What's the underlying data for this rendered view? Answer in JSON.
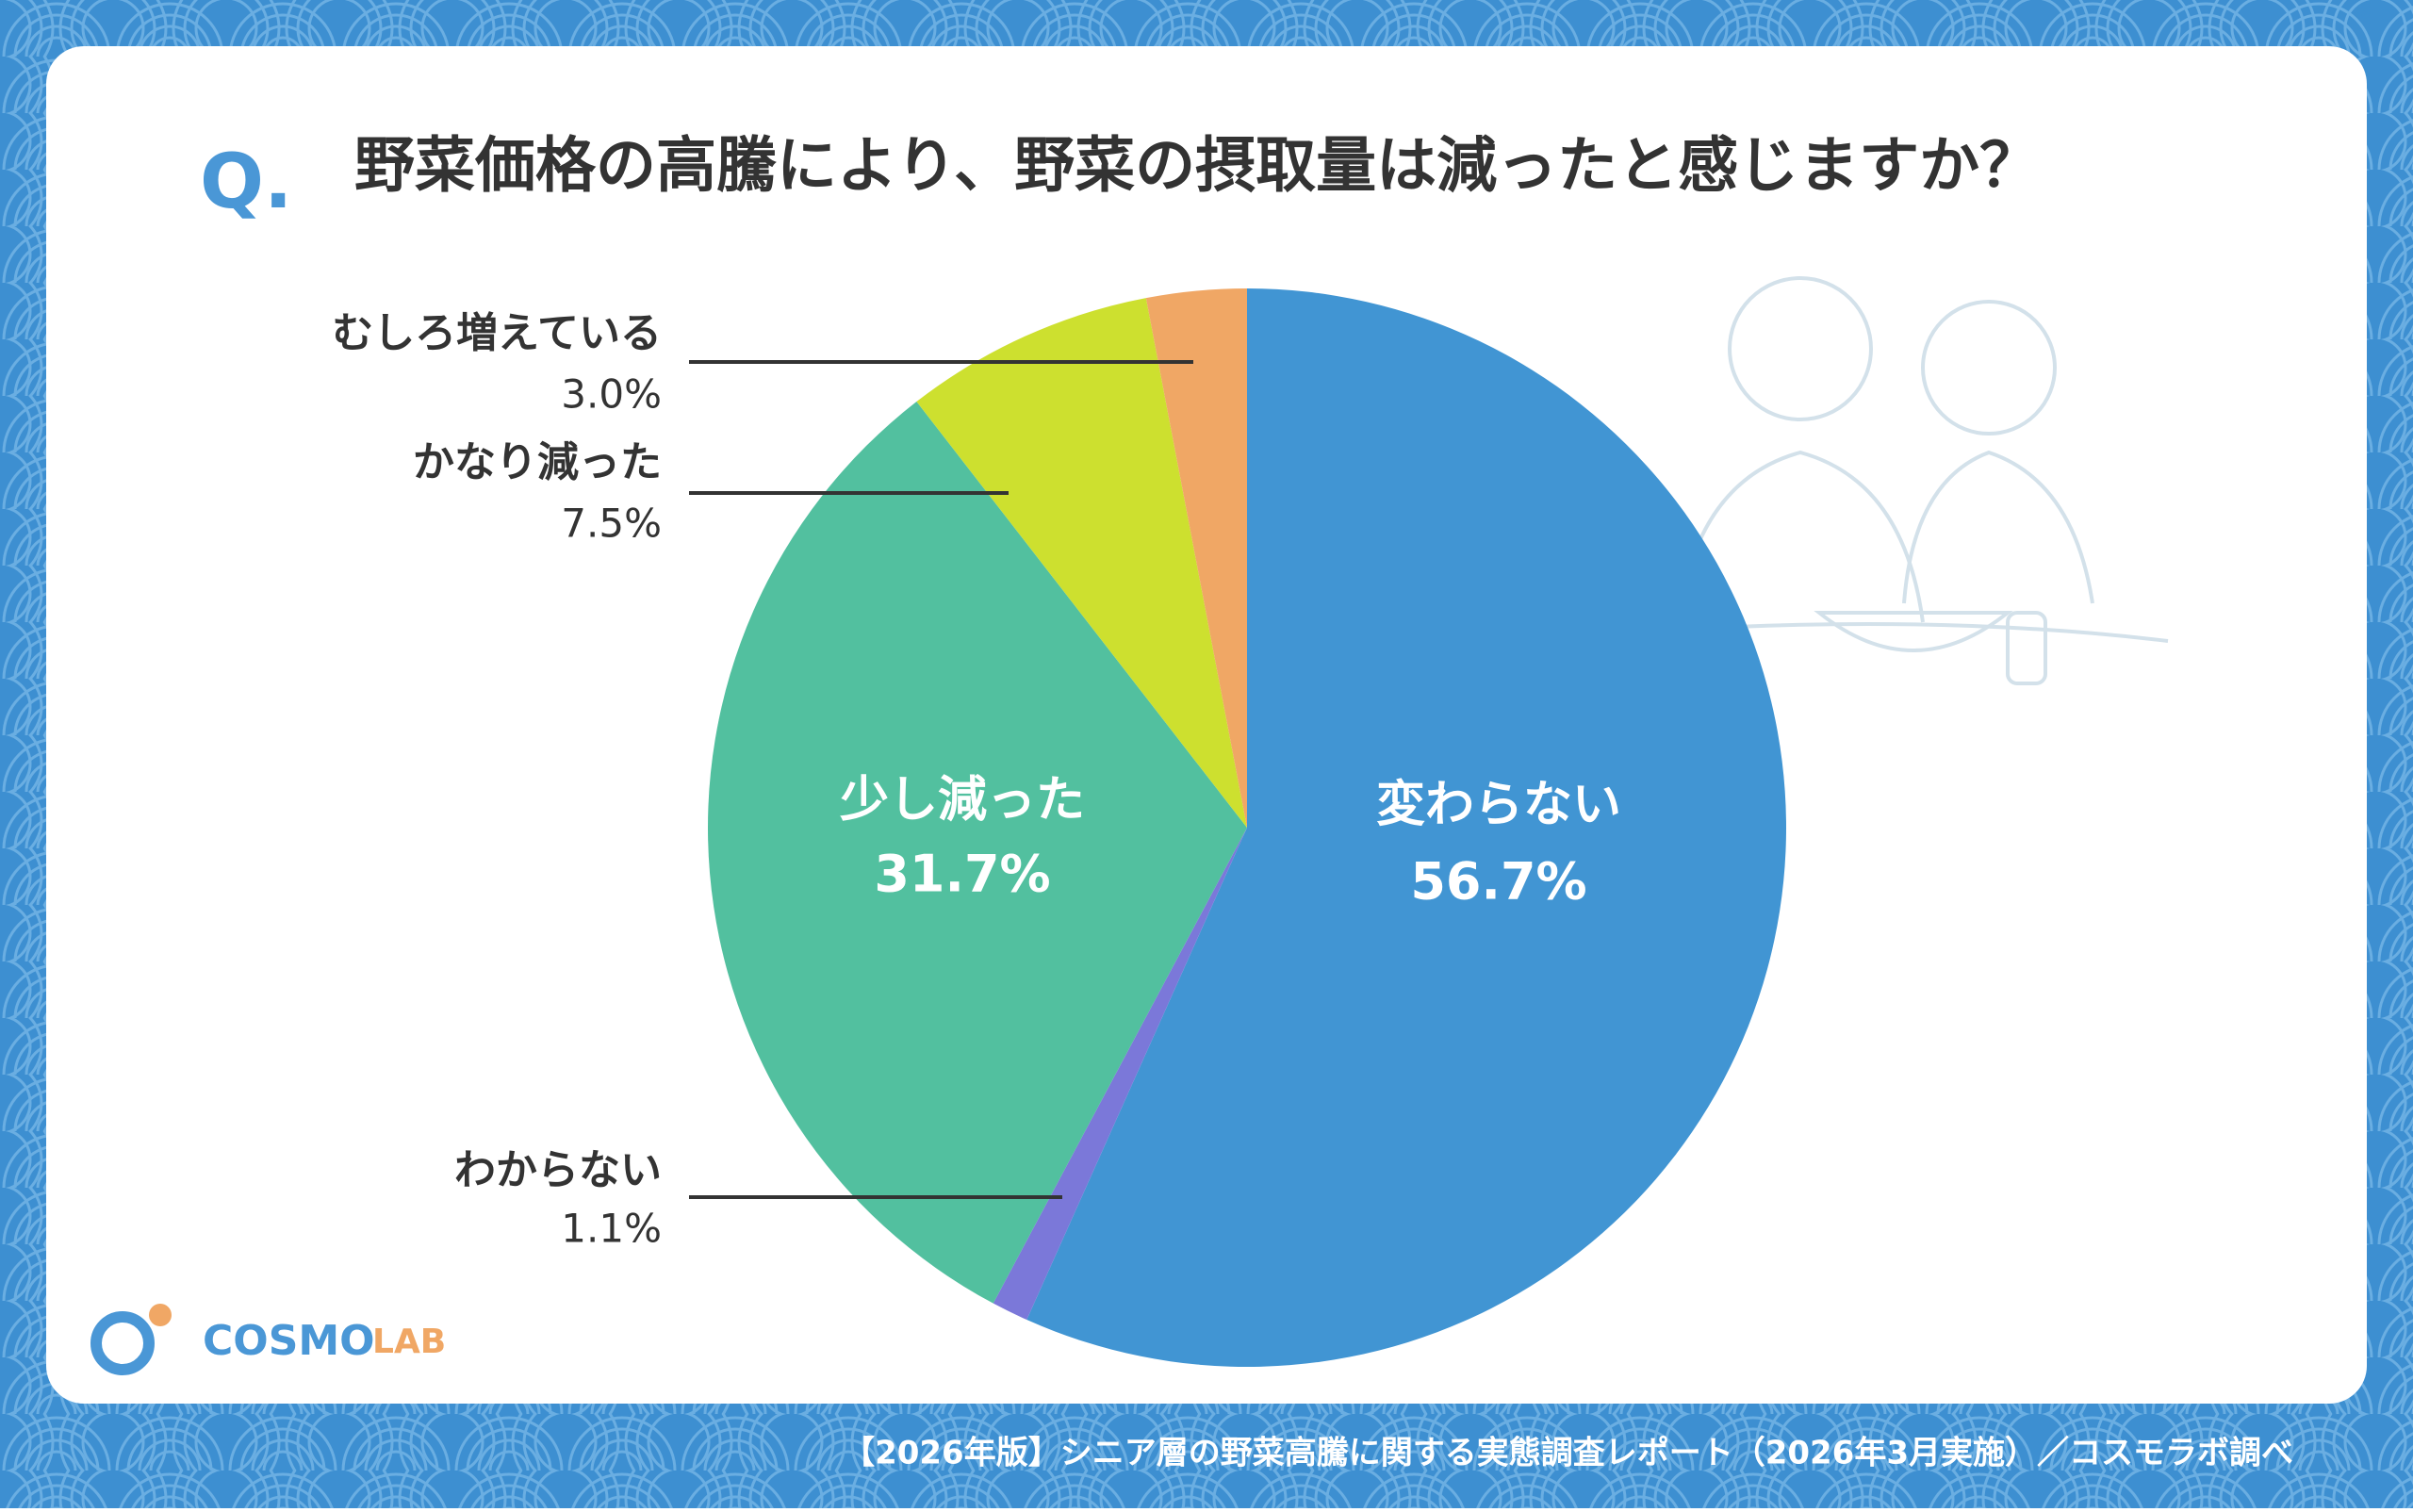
{
  "chart_data": {
    "type": "pie",
    "question_mark": "Q.",
    "title": "野菜価格の高騰により、野菜の摂取量は減ったと感じますか？",
    "categories": [
      "変わらない",
      "わからない",
      "少し減った",
      "かなり減った",
      "むしろ増えている"
    ],
    "values": [
      56.7,
      1.1,
      31.7,
      7.5,
      3.0
    ],
    "value_labels": [
      "56.7%",
      "1.1%",
      "31.7%",
      "7.5%",
      "3.0%"
    ],
    "colors": [
      "#4195d3",
      "#7b78d9",
      "#52c09f",
      "#cde02f",
      "#f0a765"
    ],
    "source": "【2026年版】シニア層の野菜高騰に関する実態調査レポート（2026年3月実施）／コスモラボ調べ"
  },
  "logo": {
    "main": "COSMO",
    "sub": "LAB"
  }
}
